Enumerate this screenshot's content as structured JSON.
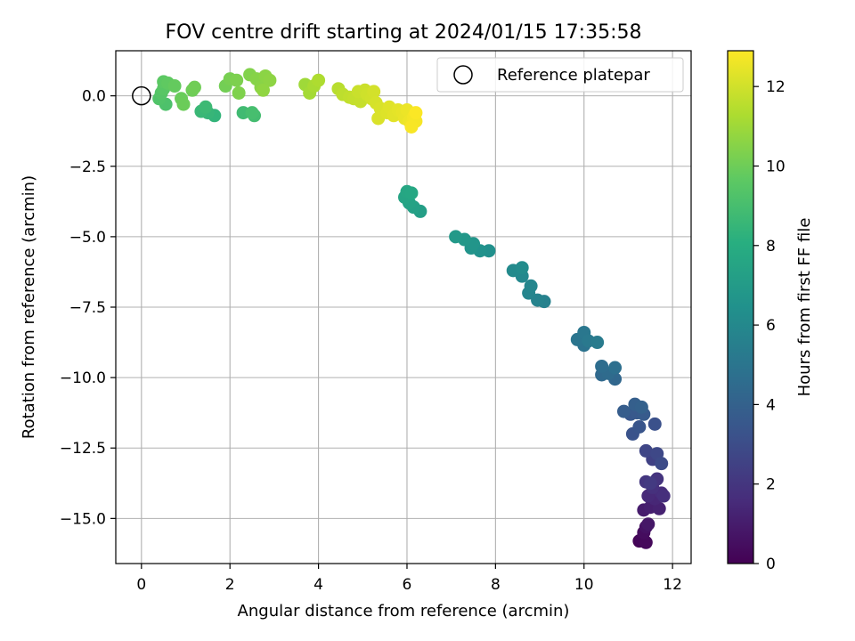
{
  "chart_data": {
    "type": "scatter",
    "title": "FOV centre drift starting at 2024/01/15 17:35:58",
    "xlabel": "Angular distance from reference (arcmin)",
    "ylabel": "Rotation from reference (arcmin)",
    "xlim": [
      -0.58,
      12.42
    ],
    "ylim": [
      -16.6,
      1.6
    ],
    "x_ticks": [
      0,
      2,
      4,
      6,
      8,
      10,
      12
    ],
    "x_tick_labels": [
      "0",
      "2",
      "4",
      "6",
      "8",
      "10",
      "12"
    ],
    "y_ticks": [
      0.0,
      -2.5,
      -5.0,
      -7.5,
      -10.0,
      -12.5,
      -15.0
    ],
    "y_tick_labels": [
      "0.0",
      "−2.5",
      "−5.0",
      "−7.5",
      "−10.0",
      "−12.5",
      "−15.0"
    ],
    "grid": true,
    "legend": {
      "position": "top-right",
      "entries": [
        {
          "label": "Reference platepar",
          "marker": "open-circle"
        }
      ]
    },
    "reference_point": {
      "x": 0,
      "y": 0,
      "label": "Reference platepar"
    },
    "colorbar": {
      "label": "Hours from first FF file",
      "colormap": "viridis",
      "range": [
        0,
        12.9
      ],
      "ticks": [
        0,
        2,
        4,
        6,
        8,
        10,
        12
      ],
      "tick_labels": [
        "0",
        "2",
        "4",
        "6",
        "8",
        "10",
        "12"
      ]
    },
    "colormap_stops": [
      "#440154",
      "#472d7b",
      "#3b528b",
      "#2c728e",
      "#21918c",
      "#28ae80",
      "#5ec962",
      "#addc30",
      "#fde725"
    ],
    "points": [
      {
        "x": 11.25,
        "y": -15.8,
        "c": 0.1
      },
      {
        "x": 11.3,
        "y": -15.75,
        "c": 0.2
      },
      {
        "x": 11.4,
        "y": -15.85,
        "c": 0.3
      },
      {
        "x": 11.35,
        "y": -15.5,
        "c": 0.4
      },
      {
        "x": 11.4,
        "y": -15.3,
        "c": 0.6
      },
      {
        "x": 11.45,
        "y": -15.2,
        "c": 0.8
      },
      {
        "x": 11.35,
        "y": -14.7,
        "c": 1.0
      },
      {
        "x": 11.5,
        "y": -14.6,
        "c": 1.1
      },
      {
        "x": 11.7,
        "y": -14.65,
        "c": 1.2
      },
      {
        "x": 11.6,
        "y": -14.3,
        "c": 1.4
      },
      {
        "x": 11.45,
        "y": -14.2,
        "c": 1.5
      },
      {
        "x": 11.75,
        "y": -14.1,
        "c": 1.6
      },
      {
        "x": 11.8,
        "y": -14.2,
        "c": 1.7
      },
      {
        "x": 11.55,
        "y": -13.9,
        "c": 1.8
      },
      {
        "x": 11.65,
        "y": -13.6,
        "c": 1.9
      },
      {
        "x": 11.4,
        "y": -13.7,
        "c": 2.0
      },
      {
        "x": 11.5,
        "y": -13.75,
        "c": 2.2
      },
      {
        "x": 11.55,
        "y": -12.9,
        "c": 2.5
      },
      {
        "x": 11.4,
        "y": -12.6,
        "c": 2.7
      },
      {
        "x": 11.65,
        "y": -12.7,
        "c": 2.8
      },
      {
        "x": 11.75,
        "y": -13.05,
        "c": 2.9
      },
      {
        "x": 11.6,
        "y": -11.65,
        "c": 3.2
      },
      {
        "x": 11.1,
        "y": -12.0,
        "c": 3.3
      },
      {
        "x": 11.25,
        "y": -11.75,
        "c": 3.4
      },
      {
        "x": 11.05,
        "y": -11.3,
        "c": 3.5
      },
      {
        "x": 11.2,
        "y": -11.25,
        "c": 3.6
      },
      {
        "x": 11.35,
        "y": -11.3,
        "c": 3.7
      },
      {
        "x": 10.9,
        "y": -11.2,
        "c": 3.8
      },
      {
        "x": 11.15,
        "y": -10.95,
        "c": 3.9
      },
      {
        "x": 11.3,
        "y": -11.05,
        "c": 4.0
      },
      {
        "x": 10.7,
        "y": -10.05,
        "c": 4.3
      },
      {
        "x": 10.4,
        "y": -9.9,
        "c": 4.4
      },
      {
        "x": 10.55,
        "y": -9.85,
        "c": 4.5
      },
      {
        "x": 10.4,
        "y": -9.6,
        "c": 4.6
      },
      {
        "x": 10.7,
        "y": -9.65,
        "c": 4.7
      },
      {
        "x": 10.0,
        "y": -8.85,
        "c": 4.9
      },
      {
        "x": 9.85,
        "y": -8.65,
        "c": 5.0
      },
      {
        "x": 10.0,
        "y": -8.4,
        "c": 5.1
      },
      {
        "x": 10.1,
        "y": -8.7,
        "c": 5.2
      },
      {
        "x": 10.3,
        "y": -8.75,
        "c": 5.3
      },
      {
        "x": 9.1,
        "y": -7.3,
        "c": 5.6
      },
      {
        "x": 8.95,
        "y": -7.25,
        "c": 5.7
      },
      {
        "x": 8.75,
        "y": -7.0,
        "c": 5.8
      },
      {
        "x": 8.8,
        "y": -6.75,
        "c": 5.9
      },
      {
        "x": 8.6,
        "y": -6.4,
        "c": 6.0
      },
      {
        "x": 8.4,
        "y": -6.2,
        "c": 6.1
      },
      {
        "x": 8.6,
        "y": -6.1,
        "c": 6.2
      },
      {
        "x": 7.85,
        "y": -5.5,
        "c": 6.4
      },
      {
        "x": 7.65,
        "y": -5.5,
        "c": 6.5
      },
      {
        "x": 7.45,
        "y": -5.4,
        "c": 6.6
      },
      {
        "x": 7.5,
        "y": -5.25,
        "c": 6.7
      },
      {
        "x": 7.3,
        "y": -5.1,
        "c": 6.8
      },
      {
        "x": 7.1,
        "y": -5.0,
        "c": 6.9
      },
      {
        "x": 6.3,
        "y": -4.1,
        "c": 7.2
      },
      {
        "x": 6.15,
        "y": -3.95,
        "c": 7.3
      },
      {
        "x": 6.05,
        "y": -3.8,
        "c": 7.4
      },
      {
        "x": 5.95,
        "y": -3.6,
        "c": 7.5
      },
      {
        "x": 6.0,
        "y": -3.4,
        "c": 7.6
      },
      {
        "x": 6.1,
        "y": -3.45,
        "c": 7.7
      },
      {
        "x": 1.65,
        "y": -0.7,
        "c": 8.4
      },
      {
        "x": 1.5,
        "y": -0.6,
        "c": 8.5
      },
      {
        "x": 1.35,
        "y": -0.55,
        "c": 8.6
      },
      {
        "x": 1.45,
        "y": -0.4,
        "c": 8.7
      },
      {
        "x": 2.3,
        "y": -0.6,
        "c": 8.8
      },
      {
        "x": 2.55,
        "y": -0.7,
        "c": 8.9
      },
      {
        "x": 2.5,
        "y": -0.6,
        "c": 9.0
      },
      {
        "x": 0.55,
        "y": -0.3,
        "c": 9.2
      },
      {
        "x": 0.4,
        "y": -0.1,
        "c": 9.3
      },
      {
        "x": 0.45,
        "y": 0.1,
        "c": 9.4
      },
      {
        "x": 0.5,
        "y": 0.25,
        "c": 9.5
      },
      {
        "x": 0.5,
        "y": 0.5,
        "c": 9.6
      },
      {
        "x": 0.6,
        "y": 0.45,
        "c": 9.7
      },
      {
        "x": 0.75,
        "y": 0.35,
        "c": 9.8
      },
      {
        "x": 0.9,
        "y": -0.1,
        "c": 9.9
      },
      {
        "x": 0.95,
        "y": -0.3,
        "c": 9.95
      },
      {
        "x": 1.15,
        "y": 0.2,
        "c": 10.0
      },
      {
        "x": 1.2,
        "y": 0.3,
        "c": 10.05
      },
      {
        "x": 1.9,
        "y": 0.35,
        "c": 10.1
      },
      {
        "x": 2.0,
        "y": 0.6,
        "c": 10.2
      },
      {
        "x": 2.15,
        "y": 0.55,
        "c": 10.3
      },
      {
        "x": 2.2,
        "y": 0.1,
        "c": 10.35
      },
      {
        "x": 2.45,
        "y": 0.75,
        "c": 10.4
      },
      {
        "x": 2.6,
        "y": 0.6,
        "c": 10.5
      },
      {
        "x": 2.7,
        "y": 0.3,
        "c": 10.55
      },
      {
        "x": 2.8,
        "y": 0.7,
        "c": 10.6
      },
      {
        "x": 2.9,
        "y": 0.55,
        "c": 10.65
      },
      {
        "x": 2.75,
        "y": 0.2,
        "c": 10.7
      },
      {
        "x": 3.7,
        "y": 0.4,
        "c": 11.0
      },
      {
        "x": 3.8,
        "y": 0.1,
        "c": 11.1
      },
      {
        "x": 3.9,
        "y": 0.35,
        "c": 11.2
      },
      {
        "x": 4.0,
        "y": 0.55,
        "c": 11.3
      },
      {
        "x": 4.45,
        "y": 0.25,
        "c": 11.5
      },
      {
        "x": 4.55,
        "y": 0.05,
        "c": 11.6
      },
      {
        "x": 4.7,
        "y": -0.05,
        "c": 11.7
      },
      {
        "x": 4.8,
        "y": -0.1,
        "c": 11.75
      },
      {
        "x": 4.95,
        "y": -0.2,
        "c": 11.8
      },
      {
        "x": 4.9,
        "y": 0.15,
        "c": 11.85
      },
      {
        "x": 5.05,
        "y": 0.2,
        "c": 11.9
      },
      {
        "x": 5.1,
        "y": 0.05,
        "c": 11.95
      },
      {
        "x": 5.2,
        "y": -0.1,
        "c": 12.0
      },
      {
        "x": 5.25,
        "y": 0.15,
        "c": 12.05
      },
      {
        "x": 5.3,
        "y": -0.25,
        "c": 12.1
      },
      {
        "x": 5.4,
        "y": -0.45,
        "c": 12.15
      },
      {
        "x": 5.35,
        "y": -0.8,
        "c": 12.2
      },
      {
        "x": 5.55,
        "y": -0.6,
        "c": 12.25
      },
      {
        "x": 5.6,
        "y": -0.4,
        "c": 12.3
      },
      {
        "x": 5.7,
        "y": -0.7,
        "c": 12.35
      },
      {
        "x": 5.8,
        "y": -0.5,
        "c": 12.4
      },
      {
        "x": 5.9,
        "y": -0.6,
        "c": 12.45
      },
      {
        "x": 5.95,
        "y": -0.8,
        "c": 12.5
      },
      {
        "x": 6.0,
        "y": -0.5,
        "c": 12.55
      },
      {
        "x": 6.05,
        "y": -0.9,
        "c": 12.6
      },
      {
        "x": 6.1,
        "y": -1.0,
        "c": 12.65
      },
      {
        "x": 6.15,
        "y": -0.75,
        "c": 12.7
      },
      {
        "x": 6.2,
        "y": -0.9,
        "c": 12.75
      },
      {
        "x": 6.1,
        "y": -1.1,
        "c": 12.8
      },
      {
        "x": 6.2,
        "y": -0.6,
        "c": 12.85
      }
    ]
  }
}
